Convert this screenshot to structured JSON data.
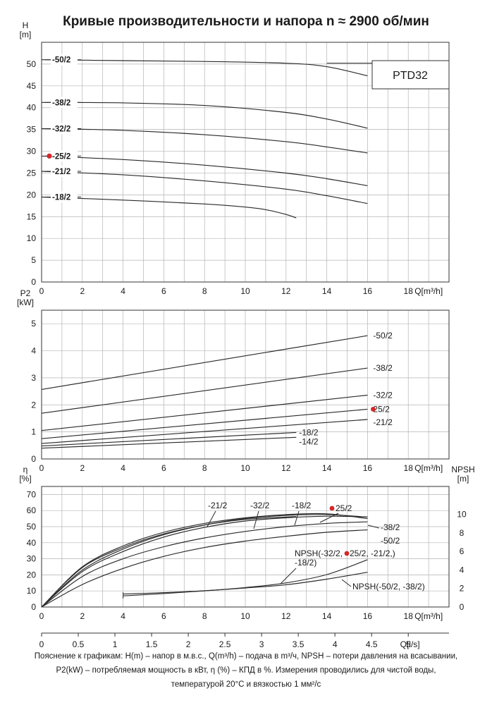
{
  "title": "Кривые производительности и напора n ≈ 2900 об/мин",
  "model_label": "PTD32",
  "notes": [
    "Пояснение к графикам: H(m) – напор в м.в.с., Q(m³/h) – подача в m³/ч, NPSH – потери давления на всасывании,",
    "P2(kW) – потребляемая мощность в кВт, η (%) – КПД в %. Измерения проводились для чистой воды,",
    "температурой 20°C и вязкостью 1 мм²/с"
  ],
  "colors": {
    "curve": "#2a2a2a",
    "grid": "#b4b4b4",
    "highlight": "#d62728",
    "frame": "#333333"
  },
  "chart_data": [
    {
      "type": "line",
      "id": "head",
      "ylabel": "H\n[m]",
      "xlabel": "Q[m³/h]",
      "xlim": [
        0,
        20
      ],
      "ylim": [
        0,
        55
      ],
      "xticks": [
        0,
        2,
        4,
        6,
        8,
        10,
        12,
        14,
        16,
        18
      ],
      "yticks": [
        0,
        5,
        10,
        15,
        20,
        25,
        30,
        35,
        40,
        45,
        50
      ],
      "grid": true,
      "legend_box": "PTD32",
      "highlight": "-25/2",
      "series": [
        {
          "name": "-50/2",
          "x": [
            0,
            4,
            8,
            12,
            14,
            16
          ],
          "y": [
            51.0,
            50.8,
            50.6,
            50.2,
            49.4,
            47.3
          ]
        },
        {
          "name": "-38/2",
          "x": [
            0,
            4,
            8,
            12,
            14,
            16
          ],
          "y": [
            41.2,
            41.1,
            40.5,
            38.9,
            37.4,
            35.3
          ]
        },
        {
          "name": "-32/2",
          "x": [
            0,
            4,
            8,
            12,
            14,
            16
          ],
          "y": [
            35.2,
            34.8,
            33.8,
            32.2,
            31.0,
            29.6
          ]
        },
        {
          "name": "-25/2",
          "x": [
            0,
            4,
            8,
            12,
            14,
            16
          ],
          "y": [
            28.9,
            28.1,
            26.8,
            25.0,
            23.7,
            22.1
          ]
        },
        {
          "name": "-21/2",
          "x": [
            0,
            4,
            8,
            12,
            14,
            16
          ],
          "y": [
            25.4,
            24.6,
            23.2,
            21.3,
            19.8,
            18.0
          ]
        },
        {
          "name": "-18/2",
          "x": [
            0,
            4,
            8,
            10,
            11,
            12,
            12.5
          ],
          "y": [
            19.5,
            18.8,
            17.9,
            17.2,
            16.6,
            15.5,
            14.7
          ]
        }
      ]
    },
    {
      "type": "line",
      "id": "power",
      "ylabel": "P2\n[kW]",
      "xlabel": "Q[m³/h]",
      "xlim": [
        0,
        20
      ],
      "ylim": [
        0,
        5.5
      ],
      "xticks": [
        0,
        2,
        4,
        6,
        8,
        10,
        12,
        14,
        16,
        18
      ],
      "yticks": [
        0,
        1,
        2,
        3,
        4,
        5
      ],
      "grid": true,
      "highlight": "25/2",
      "series": [
        {
          "name": "-50/2",
          "x": [
            0,
            16
          ],
          "y": [
            2.57,
            4.56
          ]
        },
        {
          "name": "-38/2",
          "x": [
            0,
            16
          ],
          "y": [
            1.69,
            3.36
          ]
        },
        {
          "name": "-32/2",
          "x": [
            0,
            16
          ],
          "y": [
            1.05,
            2.36
          ]
        },
        {
          "name": "25/2",
          "x": [
            0,
            16
          ],
          "y": [
            0.75,
            1.84
          ]
        },
        {
          "name": "-21/2",
          "x": [
            0,
            16
          ],
          "y": [
            0.57,
            1.46
          ]
        },
        {
          "name": "-18/2",
          "x": [
            0,
            12.5
          ],
          "y": [
            0.48,
            0.98
          ]
        },
        {
          "name": "-14/2",
          "x": [
            0,
            12.5
          ],
          "y": [
            0.4,
            0.8
          ]
        }
      ]
    },
    {
      "type": "line",
      "id": "efficiency",
      "ylabel": "η\n[%]",
      "y2label": "NPSH\n[m]",
      "xlabel": "Q[m³/h]",
      "x2label": "Q[l/s]",
      "xlim": [
        0,
        20
      ],
      "ylim": [
        0,
        75
      ],
      "y2lim": [
        0,
        13
      ],
      "xticks": [
        0,
        2,
        4,
        6,
        8,
        10,
        12,
        14,
        16,
        18
      ],
      "yticks": [
        0,
        10,
        20,
        30,
        40,
        50,
        60,
        70
      ],
      "y2ticks": [
        0,
        2,
        4,
        6,
        8,
        10
      ],
      "x2ticks": [
        "0",
        "0.5",
        "1",
        "1.5",
        "2",
        "2.5",
        "3",
        "3.5",
        "4",
        "4.5",
        "5"
      ],
      "grid": true,
      "highlight": "25/2",
      "series": [
        {
          "name": "-21/2",
          "x": [
            0,
            2,
            4,
            6,
            8,
            10,
            12,
            14,
            16
          ],
          "y": [
            0,
            25,
            38,
            46.5,
            52,
            55.5,
            57.5,
            58,
            55
          ]
        },
        {
          "name": "-32/2",
          "x": [
            0,
            2,
            4,
            6,
            8,
            10,
            12,
            14,
            16
          ],
          "y": [
            0,
            23,
            36,
            45,
            51,
            55,
            57,
            57.5,
            56
          ]
        },
        {
          "name": "-18/2",
          "x": [
            0,
            2,
            4,
            6,
            8,
            10,
            12,
            12.5
          ],
          "y": [
            0,
            24.5,
            37,
            45.5,
            51,
            54.5,
            56,
            56.3
          ]
        },
        {
          "name": "25/2",
          "x": [
            0,
            2,
            4,
            6,
            8,
            10,
            12,
            14,
            16
          ],
          "y": [
            0,
            22,
            34.5,
            43.5,
            49.5,
            53.5,
            55.5,
            56.5,
            56
          ]
        },
        {
          "name": "-38/2",
          "x": [
            0,
            2,
            4,
            6,
            8,
            10,
            12,
            14,
            16
          ],
          "y": [
            0,
            19,
            30,
            37.5,
            43,
            47,
            50,
            52,
            53
          ]
        },
        {
          "name": "-50/2",
          "x": [
            0,
            2,
            4,
            6,
            8,
            10,
            12,
            14,
            16
          ],
          "y": [
            0,
            14,
            24,
            31.5,
            37,
            41,
            44,
            46.5,
            48
          ]
        },
        {
          "name": "NPSH(-32/2, 25/2, -21/2,)",
          "axis": "right",
          "x": [
            4,
            6,
            8,
            10,
            12,
            14,
            16
          ],
          "y": [
            1.4,
            1.55,
            1.75,
            2.1,
            2.6,
            3.5,
            5.1
          ]
        },
        {
          "name": "NPSH(-50/2, -38/2)",
          "axis": "right",
          "x": [
            4,
            6,
            8,
            10,
            12,
            14,
            16
          ],
          "y": [
            1.2,
            1.45,
            1.75,
            2.05,
            2.4,
            3.0,
            3.75
          ]
        }
      ],
      "labels": [
        "-21/2",
        "-32/2",
        "-18/2",
        "25/2",
        "-38/2",
        "-50/2",
        "NPSH(-32/2,",
        "25/2, -21/2,)",
        "-18/2)",
        "NPSH(-50/2, -38/2)"
      ]
    }
  ]
}
